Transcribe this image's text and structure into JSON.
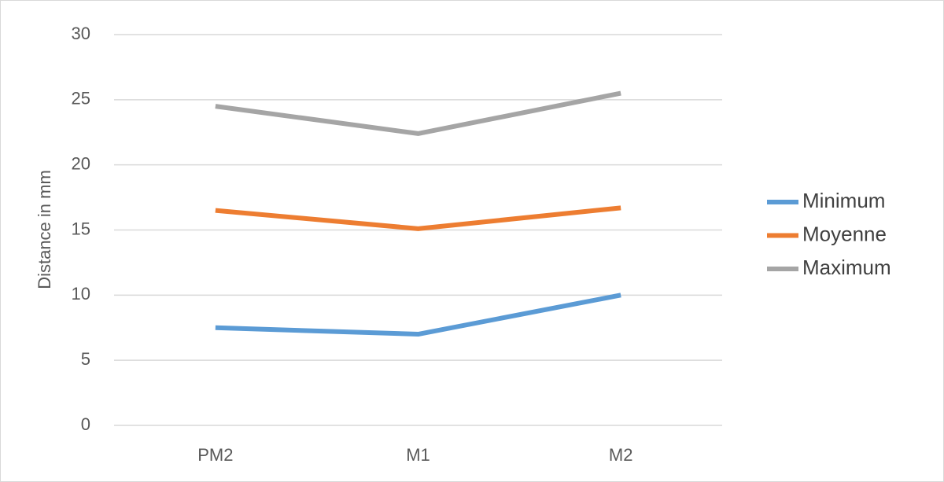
{
  "chart_data": {
    "type": "line",
    "y_label": "Distance in mm",
    "categories": [
      "PM2",
      "M1",
      "M2"
    ],
    "series": [
      {
        "name": "Minimum",
        "color": "#5b9bd5",
        "values": [
          7.5,
          7.0,
          10.0
        ]
      },
      {
        "name": "Moyenne",
        "color": "#ed7d31",
        "values": [
          16.5,
          15.1,
          16.7
        ]
      },
      {
        "name": "Maximum",
        "color": "#a5a5a5",
        "values": [
          24.5,
          22.4,
          25.5
        ]
      }
    ],
    "ylim": [
      0,
      30
    ],
    "yticks": [
      0,
      5,
      10,
      15,
      20,
      25,
      30
    ],
    "grid": true,
    "legend": "right"
  }
}
